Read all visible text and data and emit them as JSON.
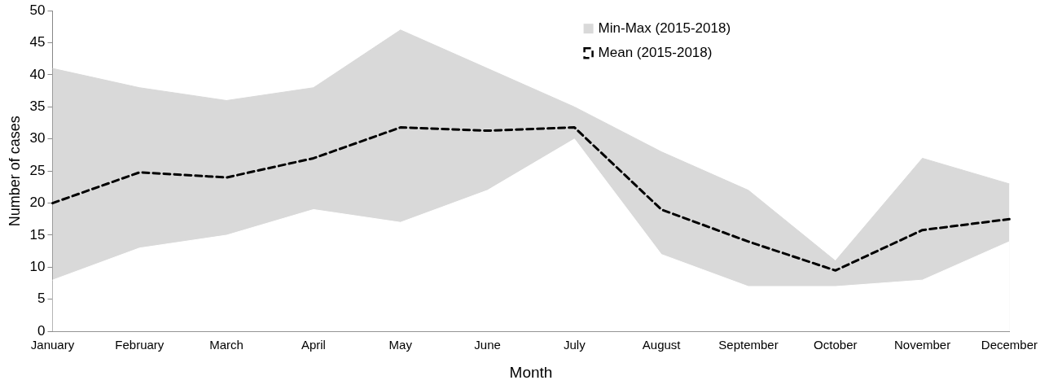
{
  "chart_data": {
    "type": "line",
    "xlabel": "Month",
    "ylabel": "Number of cases",
    "categories": [
      "January",
      "February",
      "March",
      "April",
      "May",
      "June",
      "July",
      "August",
      "September",
      "October",
      "November",
      "December"
    ],
    "series": [
      {
        "name": "Min-Max (2015-2018)",
        "type": "area",
        "color": "#d9d9d9",
        "values": [
          41,
          38,
          36,
          38,
          47,
          41,
          35,
          28,
          22,
          11,
          27,
          23
        ]
      },
      {
        "type": "area",
        "color": "#ffffff",
        "values": [
          8,
          13,
          15,
          19,
          17,
          22,
          30,
          12,
          7,
          7,
          8,
          14
        ]
      },
      {
        "name": "Mean (2015-2018)",
        "type": "line",
        "color": "#000000",
        "line_style": "dashed",
        "values": [
          20,
          24.8,
          24,
          27,
          31.8,
          31.3,
          31.8,
          19,
          14,
          9.5,
          15.8,
          17.5
        ]
      }
    ],
    "ylim": [
      0,
      50
    ],
    "yticks": [
      0,
      5,
      10,
      15,
      20,
      25,
      30,
      35,
      40,
      45,
      50
    ],
    "grid": false,
    "legend": "top right",
    "marker": "none"
  }
}
